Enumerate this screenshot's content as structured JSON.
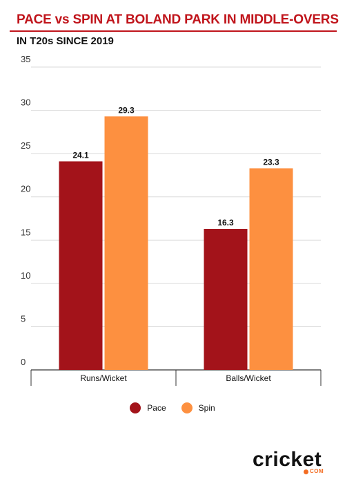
{
  "title": "PACE vs SPIN AT BOLAND PARK IN MIDDLE-OVERS",
  "subtitle": "IN T20s SINCE 2019",
  "colors": {
    "title": "#c0141b",
    "pace": "#a3131a",
    "spin": "#fd9040",
    "brand_accent": "#f36c21"
  },
  "logo": {
    "text": "cricket",
    "sub": "COM"
  },
  "chart_data": {
    "type": "bar",
    "title": "PACE vs SPIN AT BOLAND PARK IN MIDDLE-OVERS",
    "subtitle": "IN T20s SINCE 2019",
    "categories": [
      "Runs/Wicket",
      "Balls/Wicket"
    ],
    "series": [
      {
        "name": "Pace",
        "values": [
          24.1,
          16.3
        ],
        "color": "#a3131a"
      },
      {
        "name": "Spin",
        "values": [
          29.3,
          23.3
        ],
        "color": "#fd9040"
      }
    ],
    "y_ticks": [
      0,
      5,
      10,
      15,
      20,
      25,
      30,
      35
    ],
    "ylim": [
      0,
      35
    ],
    "xlabel": "",
    "ylabel": "",
    "grid": true,
    "legend": "bottom-center",
    "data_labels": true
  }
}
